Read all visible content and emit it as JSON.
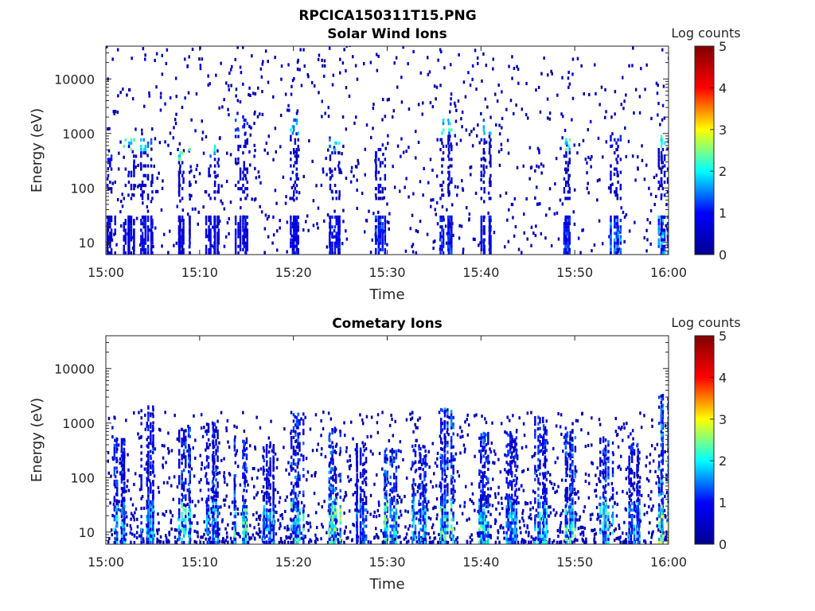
{
  "figure": {
    "title": "RPCICA150311T15.PNG"
  },
  "colors": {
    "colormap": "jet",
    "colormap_stops": [
      "#00008f",
      "#0000ff",
      "#00ffff",
      "#ffff00",
      "#ff0000",
      "#800000"
    ]
  },
  "chart_data": [
    {
      "type": "heatmap",
      "title": "Solar Wind Ions",
      "xlabel": "Time",
      "ylabel": "Energy (eV)",
      "x_ticks": [
        "15:00",
        "15:10",
        "15:20",
        "15:30",
        "15:40",
        "15:50",
        "16:00"
      ],
      "x_range": [
        "15:00",
        "16:00"
      ],
      "y_scale": "log",
      "y_ticks": [
        "10",
        "100",
        "1000",
        "10000"
      ],
      "y_range": [
        6,
        40000
      ],
      "colorbar": {
        "label": "Log counts",
        "ticks": [
          "0",
          "1",
          "2",
          "3",
          "4",
          "5"
        ],
        "range": [
          0,
          5
        ]
      },
      "description_of_content": "sparse counts mostly 0-2 log counts; dense vertical bursts below ~30 eV, scattered pixels up to ~40 keV, bright spots near 500-1000 eV",
      "bursts": [
        {
          "time": "15:00",
          "low_energy_max_log": 1.0,
          "high_energy_spot_eV": 300,
          "high_energy_log": 1.2
        },
        {
          "time": "15:02",
          "low_energy_max_log": 1.0,
          "high_energy_spot_eV": 600,
          "high_energy_log": 2.5
        },
        {
          "time": "15:04",
          "low_energy_max_log": 1.2,
          "high_energy_spot_eV": 600,
          "high_energy_log": 2.0
        },
        {
          "time": "15:08",
          "low_energy_max_log": 1.0,
          "high_energy_spot_eV": 400,
          "high_energy_log": 2.6
        },
        {
          "time": "15:11",
          "low_energy_max_log": 1.1,
          "high_energy_spot_eV": 500,
          "high_energy_log": 2.3
        },
        {
          "time": "15:14",
          "low_energy_max_log": 1.2,
          "high_energy_spot_eV": 1500,
          "high_energy_log": 1.4
        },
        {
          "time": "15:20",
          "low_energy_max_log": 1.3,
          "high_energy_spot_eV": 1300,
          "high_energy_log": 2.2
        },
        {
          "time": "15:24",
          "low_energy_max_log": 1.2,
          "high_energy_spot_eV": 600,
          "high_energy_log": 2.4
        },
        {
          "time": "15:29",
          "low_energy_max_log": 1.5,
          "high_energy_spot_eV": 400,
          "high_energy_log": 1.1
        },
        {
          "time": "15:36",
          "low_energy_max_log": 1.4,
          "high_energy_spot_eV": 1300,
          "high_energy_log": 2.3
        },
        {
          "time": "15:40",
          "low_energy_max_log": 1.2,
          "high_energy_spot_eV": 1300,
          "high_energy_log": 2.0
        },
        {
          "time": "15:49",
          "low_energy_max_log": 1.4,
          "high_energy_spot_eV": 600,
          "high_energy_log": 2.6
        },
        {
          "time": "15:54",
          "low_energy_max_log": 1.8,
          "high_energy_spot_eV": 700,
          "high_energy_log": 1.2
        },
        {
          "time": "15:59",
          "low_energy_max_log": 1.9,
          "high_energy_spot_eV": 700,
          "high_energy_log": 2.8
        }
      ]
    },
    {
      "type": "heatmap",
      "title": "Cometary Ions",
      "xlabel": "Time",
      "ylabel": "Energy (eV)",
      "x_ticks": [
        "15:00",
        "15:10",
        "15:20",
        "15:30",
        "15:40",
        "15:50",
        "16:00"
      ],
      "x_range": [
        "15:00",
        "16:00"
      ],
      "y_scale": "log",
      "y_ticks": [
        "10",
        "100",
        "1000",
        "10000"
      ],
      "y_range": [
        6,
        40000
      ],
      "colorbar": {
        "label": "Log counts",
        "ticks": [
          "0",
          "1",
          "2",
          "3",
          "4",
          "5"
        ],
        "range": [
          0,
          5
        ]
      },
      "description_of_content": "dense counts below ~1 keV with vertical bursts reaching ~2.5-3 log counts near 10-20 eV; very sparse above 2 keV",
      "bursts": [
        {
          "time": "15:01",
          "low_energy_max_log": 2.2,
          "upper_edge_eV": 400
        },
        {
          "time": "15:04",
          "low_energy_max_log": 2.0,
          "upper_edge_eV": 1500
        },
        {
          "time": "15:08",
          "low_energy_max_log": 2.4,
          "upper_edge_eV": 600
        },
        {
          "time": "15:11",
          "low_energy_max_log": 2.1,
          "upper_edge_eV": 800
        },
        {
          "time": "15:14",
          "low_energy_max_log": 2.6,
          "upper_edge_eV": 400
        },
        {
          "time": "15:17",
          "low_energy_max_log": 2.0,
          "upper_edge_eV": 300
        },
        {
          "time": "15:20",
          "low_energy_max_log": 2.5,
          "upper_edge_eV": 1200
        },
        {
          "time": "15:24",
          "low_energy_max_log": 2.8,
          "upper_edge_eV": 600
        },
        {
          "time": "15:27",
          "low_energy_max_log": 1.8,
          "upper_edge_eV": 300
        },
        {
          "time": "15:30",
          "low_energy_max_log": 2.6,
          "upper_edge_eV": 250
        },
        {
          "time": "15:33",
          "low_energy_max_log": 2.4,
          "upper_edge_eV": 300
        },
        {
          "time": "15:36",
          "low_energy_max_log": 2.7,
          "upper_edge_eV": 1500
        },
        {
          "time": "15:40",
          "low_energy_max_log": 2.5,
          "upper_edge_eV": 500
        },
        {
          "time": "15:43",
          "low_energy_max_log": 2.0,
          "upper_edge_eV": 500
        },
        {
          "time": "15:46",
          "low_energy_max_log": 2.3,
          "upper_edge_eV": 1000
        },
        {
          "time": "15:49",
          "low_energy_max_log": 2.6,
          "upper_edge_eV": 600
        },
        {
          "time": "15:53",
          "low_energy_max_log": 2.4,
          "upper_edge_eV": 400
        },
        {
          "time": "15:56",
          "low_energy_max_log": 2.0,
          "upper_edge_eV": 300
        },
        {
          "time": "15:59",
          "low_energy_max_log": 3.0,
          "upper_edge_eV": 2500
        }
      ]
    }
  ]
}
